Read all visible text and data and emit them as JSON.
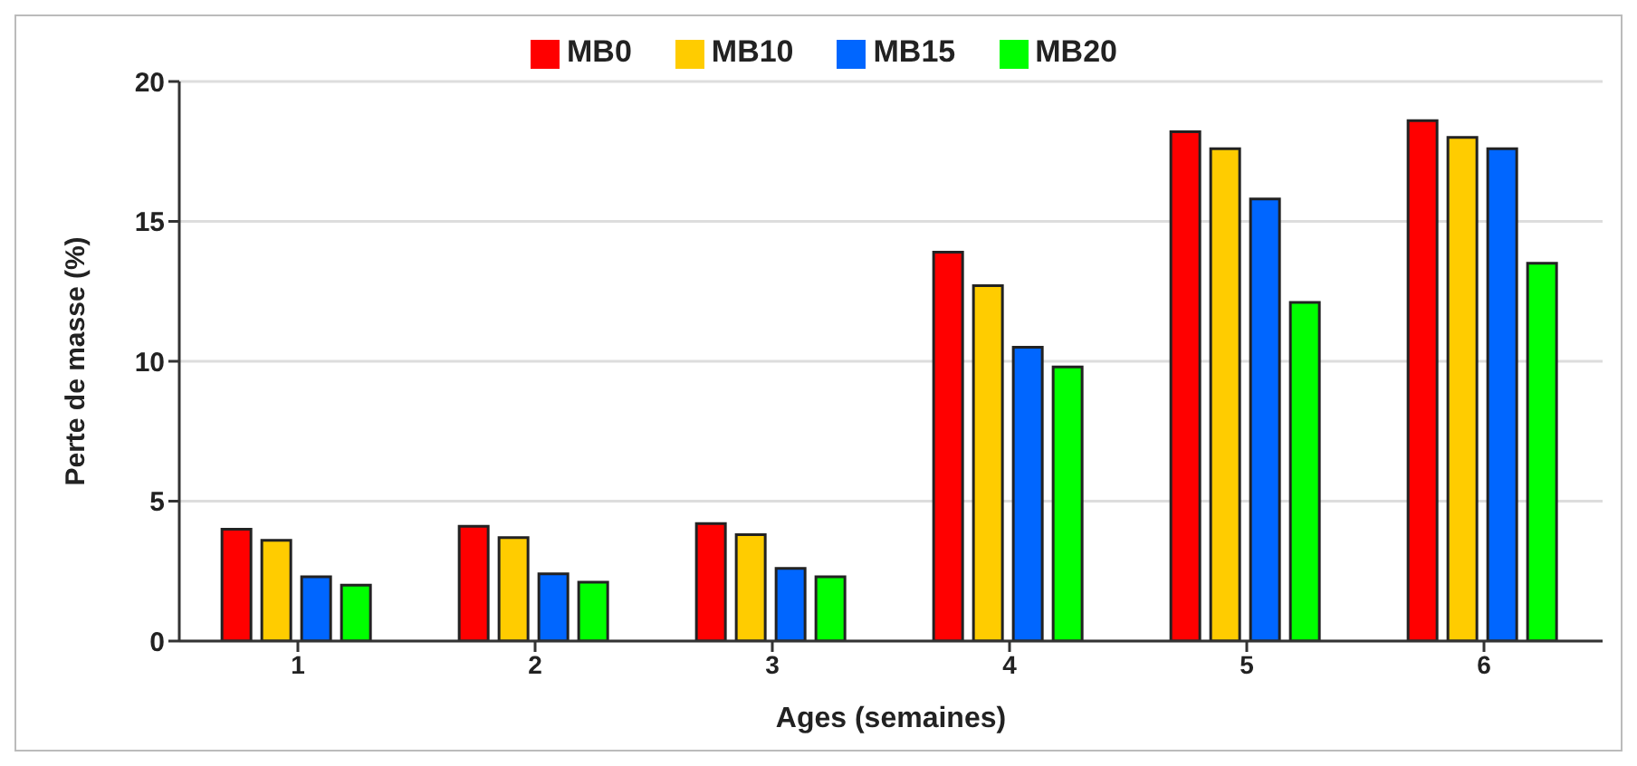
{
  "chart_data": {
    "type": "bar",
    "xlabel": "Ages (semaines)",
    "ylabel": "Perte de masse (%)",
    "categories": [
      "1",
      "2",
      "3",
      "4",
      "5",
      "6"
    ],
    "series": [
      {
        "name": "MB0",
        "color": "#ff0000",
        "values": [
          4.0,
          4.1,
          4.2,
          13.9,
          18.2,
          18.6
        ]
      },
      {
        "name": "MB10",
        "color": "#ffcc00",
        "values": [
          3.6,
          3.7,
          3.8,
          12.7,
          17.6,
          18.0
        ]
      },
      {
        "name": "MB15",
        "color": "#0066ff",
        "values": [
          2.3,
          2.4,
          2.6,
          10.5,
          15.8,
          17.6
        ]
      },
      {
        "name": "MB20",
        "color": "#00ff00",
        "values": [
          2.0,
          2.1,
          2.3,
          9.8,
          12.1,
          13.5
        ]
      }
    ],
    "ylim": [
      0,
      20
    ],
    "yticks": [
      0,
      5,
      10,
      15,
      20
    ],
    "grid": "y",
    "legend": "top"
  }
}
